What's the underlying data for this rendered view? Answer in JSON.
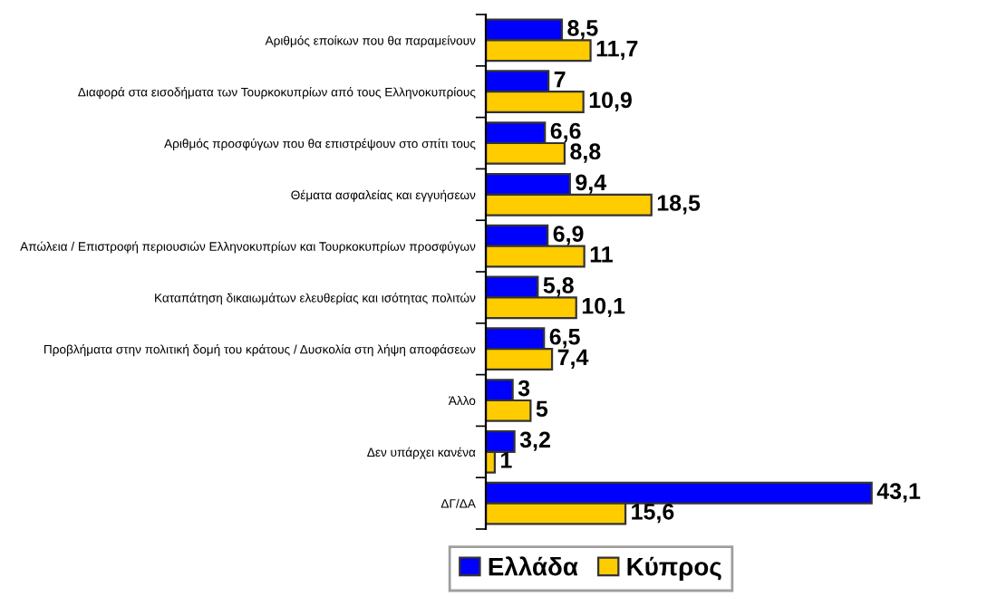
{
  "chart_data": {
    "type": "bar",
    "orientation": "horizontal",
    "categories": [
      "Αριθμός εποίκων που θα παραμείνουν",
      "Διαφορά στα εισοδήματα των Τουρκοκυπρίων από τους Ελληνοκυπρίους",
      "Αριθμός προσφύγων που θα επιστρέψουν στο σπίτι τους",
      "Θέματα ασφαλείας και εγγυήσεων",
      "Απώλεια / Επιστροφή περιουσιών Ελληνοκυπρίων και Τουρκοκυπρίων προσφύγων",
      "Καταπάτηση δικαιωμάτων ελευθερίας και ισότητας πολιτών",
      "Προβλήματα στην πολιτική δομή του κράτους / Δυσκολία στη λήψη αποφάσεων",
      "Άλλο",
      "Δεν υπάρχει κανένα",
      "ΔΓ/ΔΑ"
    ],
    "series": [
      {
        "name": "Ελλάδα",
        "color": "#0000ff",
        "values": [
          8.5,
          7,
          6.6,
          9.4,
          6.9,
          5.8,
          6.5,
          3,
          3.2,
          43.1
        ],
        "value_labels": [
          "8,5",
          "7",
          "6,6",
          "9,4",
          "6,9",
          "5,8",
          "6,5",
          "3",
          "3,2",
          "43,1"
        ]
      },
      {
        "name": "Κύπρος",
        "color": "#ffcc00",
        "values": [
          11.7,
          10.9,
          8.8,
          18.5,
          11,
          10.1,
          7.4,
          5,
          1,
          15.6
        ],
        "value_labels": [
          "11,7",
          "10,9",
          "8,8",
          "18,5",
          "11",
          "10,1",
          "7,4",
          "5",
          "1",
          "15,6"
        ]
      }
    ],
    "legend": "bottom",
    "grid": false
  }
}
